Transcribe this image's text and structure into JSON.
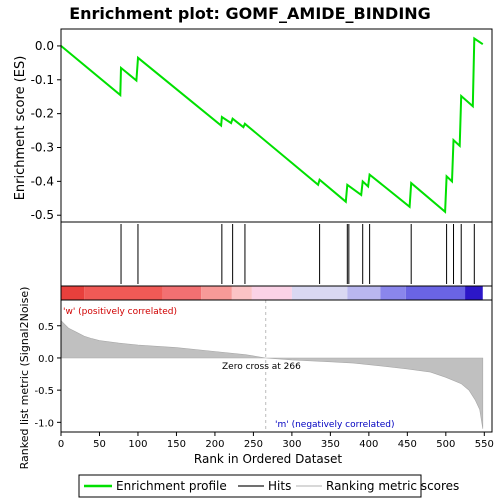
{
  "chart_data": {
    "type": "line",
    "title": "Enrichment plot: GOMF_AMIDE_BINDING",
    "ylabel_top": "Enrichment score (ES)",
    "ylabel_bottom": "Ranked list metric (Signal2Noise)",
    "xlabel": "Rank in Ordered Dataset",
    "xlim": [
      0,
      560
    ],
    "ylim_top": [
      -0.52,
      0.05
    ],
    "ylim_bottom": [
      -1.15,
      0.9
    ],
    "x_ticks": [
      0,
      50,
      100,
      150,
      200,
      250,
      300,
      350,
      400,
      450,
      500,
      550
    ],
    "y_ticks_top": [
      0.0,
      -0.1,
      -0.2,
      -0.3,
      -0.4,
      -0.5
    ],
    "y_tick_labels_top": [
      "0.0",
      "-0.1",
      "-0.2",
      "-0.3",
      "-0.4",
      "-0.5"
    ],
    "y_ticks_bottom": [
      0.5,
      0.0,
      -0.5,
      -1.0
    ],
    "y_tick_labels_bottom": [
      "0.5",
      "0.0",
      "-0.5",
      "-1.0"
    ],
    "es_points": [
      [
        0,
        0.0
      ],
      [
        77,
        -0.145
      ],
      [
        78,
        -0.065
      ],
      [
        98,
        -0.102
      ],
      [
        100,
        -0.035
      ],
      [
        208,
        -0.235
      ],
      [
        209,
        -0.21
      ],
      [
        221,
        -0.228
      ],
      [
        223,
        -0.215
      ],
      [
        237,
        -0.24
      ],
      [
        239,
        -0.23
      ],
      [
        334,
        -0.41
      ],
      [
        336,
        -0.395
      ],
      [
        370,
        -0.46
      ],
      [
        372,
        -0.41
      ],
      [
        390,
        -0.44
      ],
      [
        392,
        -0.4
      ],
      [
        399,
        -0.415
      ],
      [
        401,
        -0.38
      ],
      [
        453,
        -0.475
      ],
      [
        455,
        -0.405
      ],
      [
        499,
        -0.49
      ],
      [
        501,
        -0.385
      ],
      [
        508,
        -0.4
      ],
      [
        510,
        -0.278
      ],
      [
        518,
        -0.295
      ],
      [
        520,
        -0.148
      ],
      [
        535,
        -0.178
      ],
      [
        537,
        0.022
      ],
      [
        548,
        0.005
      ]
    ],
    "hits": [
      78,
      100,
      209,
      223,
      239,
      336,
      372,
      374,
      392,
      401,
      455,
      501,
      510,
      520,
      537
    ],
    "metric_points": [
      [
        0,
        0.58
      ],
      [
        5,
        0.52
      ],
      [
        10,
        0.46
      ],
      [
        20,
        0.4
      ],
      [
        30,
        0.34
      ],
      [
        40,
        0.3
      ],
      [
        50,
        0.27
      ],
      [
        75,
        0.23
      ],
      [
        100,
        0.2
      ],
      [
        150,
        0.16
      ],
      [
        200,
        0.1
      ],
      [
        240,
        0.05
      ],
      [
        266,
        0.0
      ],
      [
        300,
        -0.03
      ],
      [
        350,
        -0.06
      ],
      [
        380,
        -0.08
      ],
      [
        420,
        -0.13
      ],
      [
        450,
        -0.17
      ],
      [
        480,
        -0.22
      ],
      [
        500,
        -0.3
      ],
      [
        520,
        -0.4
      ],
      [
        530,
        -0.5
      ],
      [
        538,
        -0.65
      ],
      [
        544,
        -0.8
      ],
      [
        548,
        -1.1
      ]
    ],
    "heatmap_segments": [
      {
        "from": 0,
        "to": 30,
        "color": "#e8403c"
      },
      {
        "from": 30,
        "to": 132,
        "color": "#f05a56"
      },
      {
        "from": 132,
        "to": 182,
        "color": "#f27072"
      },
      {
        "from": 182,
        "to": 222,
        "color": "#f79a98"
      },
      {
        "from": 222,
        "to": 248,
        "color": "#fbc3c5"
      },
      {
        "from": 248,
        "to": 300,
        "color": "#fbd2e6"
      },
      {
        "from": 300,
        "to": 372,
        "color": "#d9d8f2"
      },
      {
        "from": 372,
        "to": 415,
        "color": "#b9b7ef"
      },
      {
        "from": 415,
        "to": 448,
        "color": "#8a86ec"
      },
      {
        "from": 448,
        "to": 525,
        "color": "#6a64e4"
      },
      {
        "from": 525,
        "to": 548,
        "color": "#2c17c8"
      }
    ],
    "zero_cross_label": "Zero cross at 266",
    "zero_cross_x": 266,
    "pos_label": "'w' (positively correlated)",
    "neg_label": "'m' (negatively correlated)",
    "colors": {
      "es_line": "#00e000",
      "pos_text": "#d00000",
      "neg_text": "#0000c0",
      "metric_fill": "#c0c0c0"
    },
    "legend": [
      {
        "label": "Enrichment profile",
        "kind": "line",
        "color": "#00e000"
      },
      {
        "label": "Hits",
        "kind": "line",
        "color": "#707070"
      },
      {
        "label": "Ranking metric scores",
        "kind": "line",
        "color": "#d8d8d8"
      }
    ]
  }
}
